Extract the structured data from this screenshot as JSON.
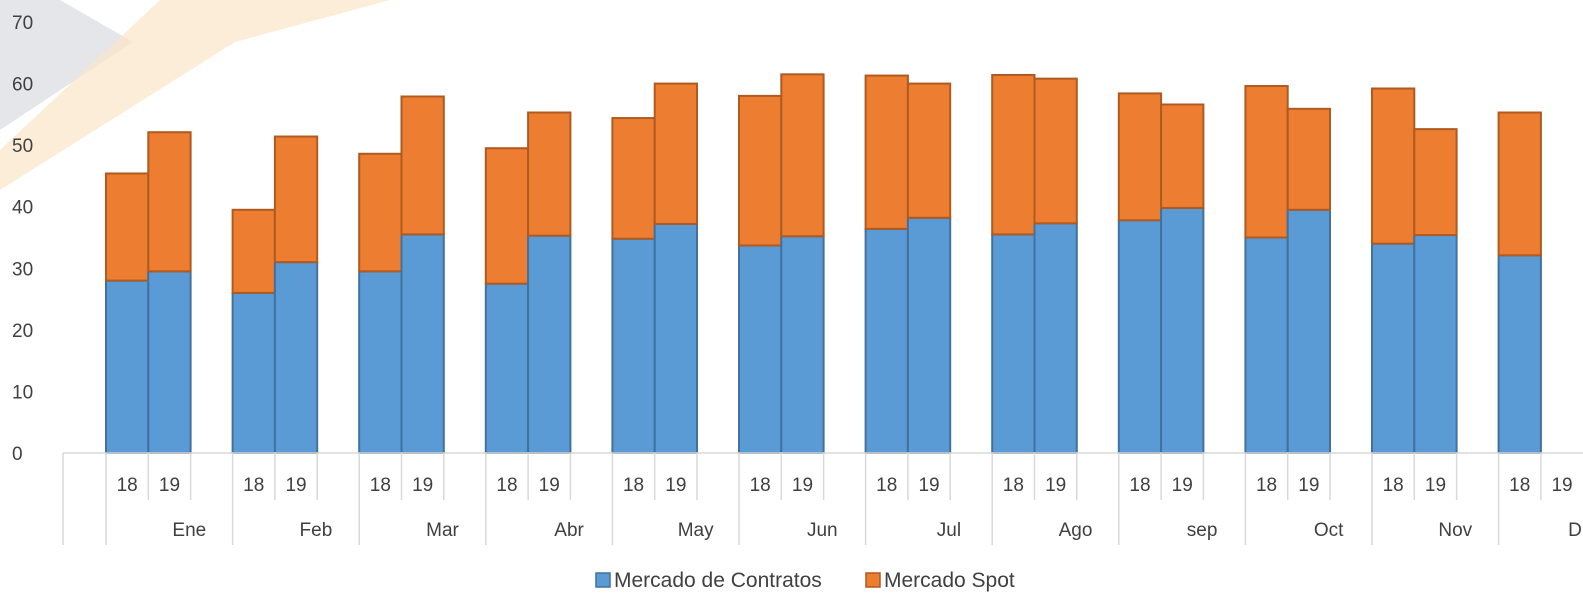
{
  "chart_data": {
    "type": "bar",
    "stacked": true,
    "ylim": [
      0,
      70
    ],
    "yticks": [
      0,
      10,
      20,
      30,
      40,
      50,
      60,
      70
    ],
    "groups": [
      "Ene",
      "Feb",
      "Mar",
      "Abr",
      "May",
      "Jun",
      "Jul",
      "Ago",
      "sep",
      "Oct",
      "Nov",
      "Dic"
    ],
    "subcategories": [
      "18",
      "19"
    ],
    "series": [
      {
        "name": "Mercado de Contratos",
        "color": "#5B9BD5",
        "edge": "#41719C",
        "values": [
          28.0,
          29.5,
          26.0,
          31.0,
          29.5,
          35.5,
          27.5,
          35.3,
          34.8,
          37.2,
          33.7,
          35.2,
          36.4,
          38.2,
          35.5,
          37.3,
          37.8,
          39.8,
          35.0,
          39.5,
          34.0,
          35.4,
          32.1,
          null
        ]
      },
      {
        "name": "Mercado Spot",
        "color": "#ED7D31",
        "edge": "#AE5A21",
        "values": [
          17.4,
          22.6,
          13.5,
          20.4,
          19.1,
          22.4,
          22.0,
          20.0,
          19.6,
          22.8,
          24.3,
          26.3,
          24.9,
          21.8,
          25.9,
          23.5,
          20.6,
          16.8,
          24.6,
          16.4,
          25.2,
          17.2,
          23.2,
          null
        ]
      }
    ],
    "legend_position": "bottom",
    "grid": false
  }
}
